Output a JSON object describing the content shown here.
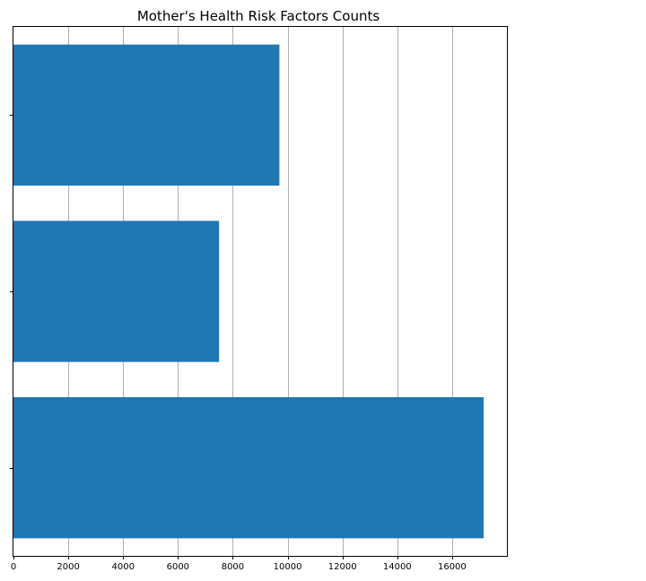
{
  "chart_data": {
    "type": "bar",
    "orientation": "horizontal",
    "title": "Mother's Health Risk Factors Counts",
    "xlabel": "",
    "ylabel": "",
    "categories": [
      "",
      "",
      ""
    ],
    "values": [
      9700,
      7500,
      17150
    ],
    "xlim": [
      0,
      18000
    ],
    "xticks": [
      0,
      2000,
      4000,
      6000,
      8000,
      10000,
      12000,
      14000,
      16000
    ],
    "grid": "vertical",
    "bar_color": "#1f77b4",
    "grid_color": "#b0b0b0"
  }
}
